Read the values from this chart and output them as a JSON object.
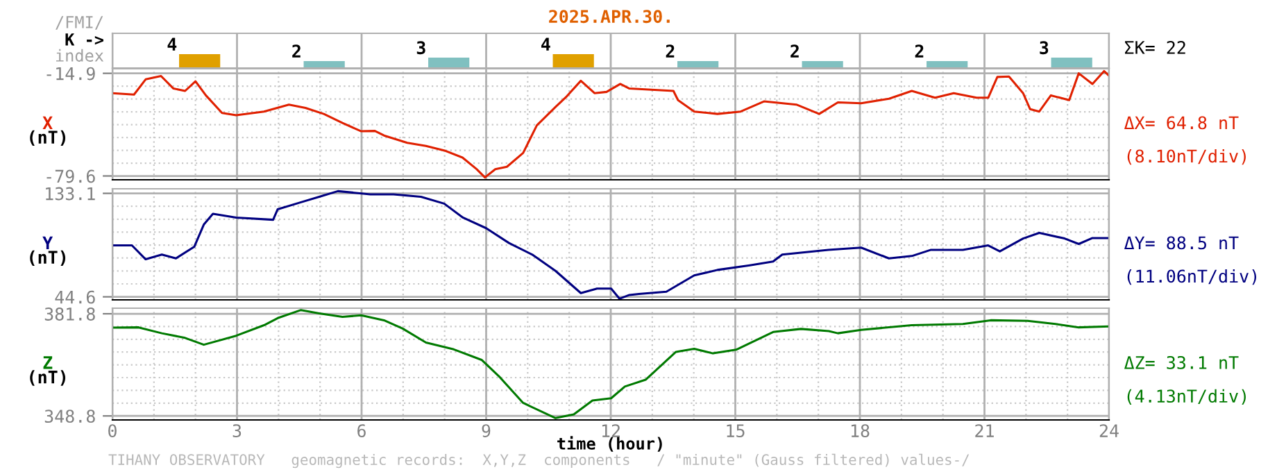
{
  "chart_data": [
    {
      "type": "bar",
      "title": "2025.APR.30.",
      "categories": [
        null,
        null,
        null,
        null,
        null,
        null,
        null,
        null
      ],
      "values": [
        4,
        2,
        3,
        4,
        2,
        2,
        2,
        3
      ],
      "data_labels": true,
      "colors": [
        "#e0a000",
        "#80c0c0",
        "#80c0c0",
        "#e0a000",
        "#80c0c0",
        "#80c0c0",
        "#80c0c0",
        "#80c0c0"
      ],
      "annotations": [
        "/FMI/",
        "K ->",
        "index",
        "ΣK= 22"
      ]
    },
    {
      "type": "line",
      "ylabel": "X\n(nT)",
      "xlim": [
        0,
        24
      ],
      "xticks": [
        0,
        3,
        6,
        9,
        12,
        15,
        18,
        21,
        24
      ],
      "ylim": [
        -82,
        -12
      ],
      "yticks": [
        -79.6,
        -14.9
      ],
      "tick_labels": "y",
      "grid": true,
      "annotations": [
        "ΔX= 64.8 nT",
        "(8.10nT/div)"
      ],
      "series": [
        {
          "color": "#e02000",
          "x": [
            0,
            0.52,
            0.8,
            1.17,
            1.47,
            1.75,
            2.0,
            2.25,
            2.64,
            2.98,
            3.65,
            4.25,
            4.65,
            5.09,
            5.54,
            5.99,
            6.32,
            6.54,
            7.1,
            7.55,
            8.0,
            8.43,
            8.77,
            8.97,
            9.22,
            9.5,
            9.89,
            10.22,
            10.67,
            10.94,
            11.28,
            11.61,
            11.9,
            12.23,
            12.45,
            13.51,
            13.62,
            14.01,
            14.57,
            15.13,
            15.69,
            16.47,
            17.02,
            17.47,
            18.03,
            18.7,
            19.25,
            19.81,
            20.26,
            20.81,
            21.09,
            21.31,
            21.59,
            21.93,
            22.1,
            22.32,
            22.6,
            23.04,
            23.27,
            23.6,
            23.88,
            24
          ],
          "values": [
            -27.4,
            -28.3,
            -18.7,
            -16.6,
            -24.5,
            -26,
            -19.9,
            -28.8,
            -39.9,
            -41.3,
            -39,
            -34.6,
            -36.7,
            -40.5,
            -46.2,
            -51.4,
            -51.2,
            -54.1,
            -58.7,
            -60.7,
            -63.6,
            -68,
            -75.3,
            -80.5,
            -75.3,
            -73.8,
            -65.1,
            -47.7,
            -36.1,
            -29.4,
            -19.6,
            -27.4,
            -26.6,
            -21.6,
            -24.5,
            -26,
            -31.8,
            -39,
            -40.5,
            -39,
            -32.6,
            -34.6,
            -40.5,
            -33.2,
            -33.8,
            -30.9,
            -26,
            -30.3,
            -27.4,
            -30.3,
            -30.3,
            -17.2,
            -16.9,
            -27.4,
            -37.5,
            -39,
            -28.8,
            -31.8,
            -14.9,
            -21.6,
            -13.5,
            -16.4
          ]
        }
      ]
    },
    {
      "type": "line",
      "ylabel": "Y\n(nT)",
      "xlim": [
        0,
        24
      ],
      "xticks": [
        0,
        3,
        6,
        9,
        12,
        15,
        18,
        21,
        24
      ],
      "ylim": [
        42,
        137
      ],
      "yticks": [
        44.6,
        133.1
      ],
      "tick_labels": "y",
      "grid": true,
      "annotations": [
        "ΔY= 88.5 nT",
        "(11.06nT/div)"
      ],
      "series": [
        {
          "color": "#000080",
          "x": [
            0,
            0.47,
            0.8,
            1.19,
            1.53,
            1.97,
            2.2,
            2.42,
            2.98,
            3.87,
            3.98,
            4.54,
            4.98,
            5.43,
            6.21,
            6.77,
            7.43,
            7.99,
            8.44,
            9.0,
            9.55,
            10.11,
            10.67,
            11.28,
            11.67,
            12.01,
            12.21,
            12.45,
            12.68,
            13.34,
            14.01,
            14.57,
            15.35,
            15.91,
            16.13,
            17.24,
            18.03,
            18.7,
            19.25,
            19.7,
            20.48,
            21.09,
            21.37,
            21.93,
            22.32,
            22.93,
            23.27,
            23.6,
            24
          ],
          "values": [
            88.6,
            88.6,
            76.7,
            80.7,
            77.5,
            87.4,
            106.4,
            115.6,
            112.4,
            110.5,
            119.5,
            125.5,
            130.2,
            135,
            132.3,
            132.3,
            130.2,
            124.3,
            112.4,
            103.3,
            90.6,
            80.7,
            66.8,
            47.8,
            51.7,
            51.7,
            43,
            46.2,
            47,
            49,
            62.9,
            67.6,
            71.6,
            74.8,
            80.7,
            84.7,
            86.7,
            77.5,
            79.5,
            84.7,
            84.7,
            88.6,
            83.5,
            94.5,
            99.3,
            94.5,
            89.8,
            94.9,
            94.9
          ]
        }
      ]
    },
    {
      "type": "line",
      "ylabel": "Z\n(nT)",
      "xlabel": "time (hour)",
      "xlim": [
        0,
        24
      ],
      "xticks": [
        0,
        3,
        6,
        9,
        12,
        15,
        18,
        21,
        24
      ],
      "ylim": [
        347.5,
        383.6
      ],
      "yticks": [
        348.8,
        381.8
      ],
      "grid": true,
      "annotations": [
        "ΔZ= 33.1 nT",
        "(4.13nT/div)",
        "TIHANY OBSERVATORY   geomagnetic records:  X,Y,Z  components   / \"minute\" (Gauss filtered) values-/"
      ],
      "series": [
        {
          "color": "#007a00",
          "x": [
            0,
            0.63,
            1.19,
            1.75,
            2.2,
            2.98,
            3.65,
            3.98,
            4.54,
            4.98,
            5.54,
            5.99,
            6.54,
            6.99,
            7.55,
            8.22,
            8.89,
            9.33,
            9.89,
            10.67,
            11.11,
            11.56,
            12.01,
            12.34,
            12.84,
            13.57,
            14.01,
            14.46,
            15.02,
            15.91,
            16.58,
            17.25,
            17.47,
            18.03,
            19.25,
            20.48,
            21.15,
            22.04,
            22.71,
            23.27,
            24
          ],
          "values": [
            377.3,
            377.4,
            375.5,
            374,
            371.8,
            374.7,
            378.1,
            380.4,
            383,
            381.9,
            380.8,
            381.3,
            379.7,
            377,
            372.5,
            370.3,
            366.9,
            361.3,
            353,
            348.1,
            349.3,
            353.8,
            354.5,
            358.3,
            360.5,
            369.5,
            370.5,
            369,
            370.2,
            375.9,
            376.9,
            376.2,
            375.5,
            376.6,
            378.1,
            378.5,
            379.7,
            379.5,
            378.5,
            377.4,
            377.7
          ]
        }
      ]
    }
  ]
}
